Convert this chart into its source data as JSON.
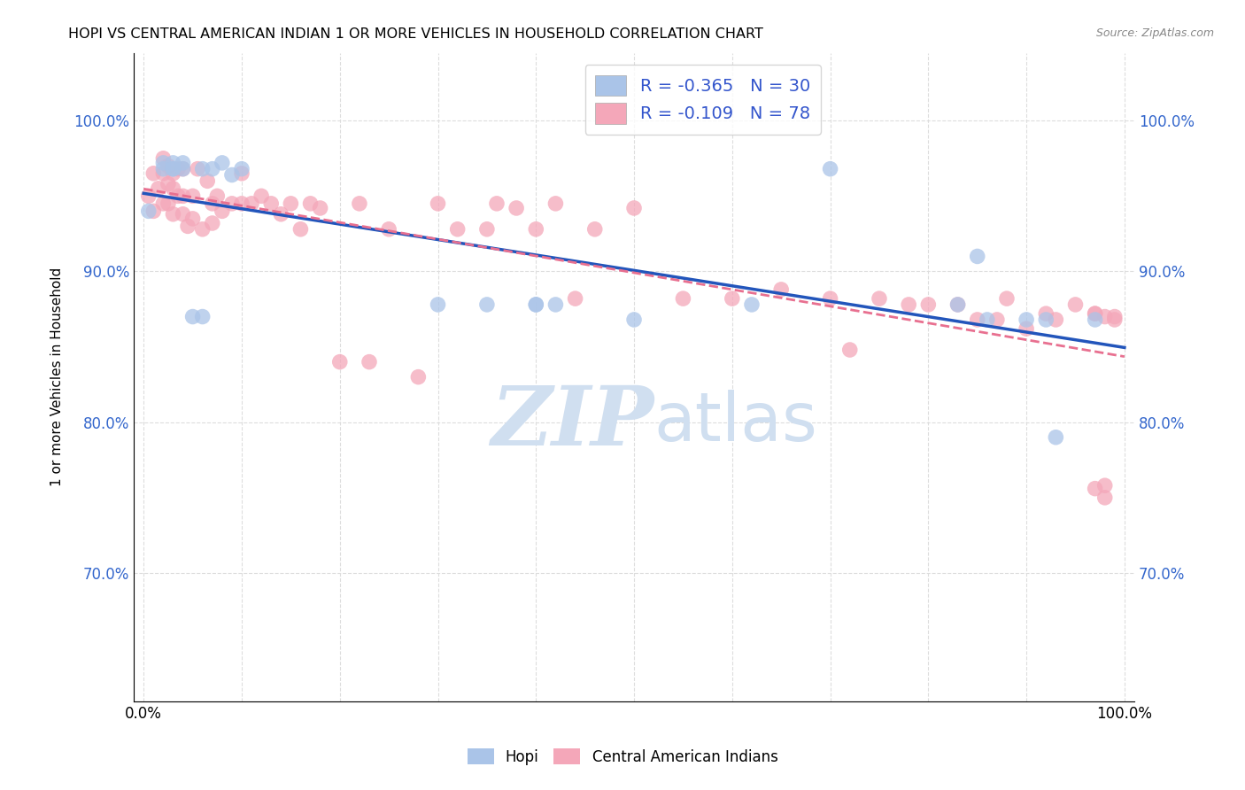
{
  "title": "HOPI VS CENTRAL AMERICAN INDIAN 1 OR MORE VEHICLES IN HOUSEHOLD CORRELATION CHART",
  "source": "Source: ZipAtlas.com",
  "ylabel": "1 or more Vehicles in Household",
  "xlabel": "",
  "xlim": [
    -0.01,
    1.01
  ],
  "ylim": [
    0.615,
    1.045
  ],
  "yticks": [
    0.7,
    0.8,
    0.9,
    1.0
  ],
  "ytick_labels": [
    "70.0%",
    "80.0%",
    "90.0%",
    "100.0%"
  ],
  "xticks": [
    0.0,
    0.1,
    0.2,
    0.3,
    0.4,
    0.5,
    0.6,
    0.7,
    0.8,
    0.9,
    1.0
  ],
  "hopi_color": "#aac4e8",
  "central_color": "#f4a7b9",
  "hopi_line_color": "#2255bb",
  "central_line_color": "#e87090",
  "hopi_R": -0.365,
  "hopi_N": 30,
  "central_R": -0.109,
  "central_N": 78,
  "watermark_zip": "ZIP",
  "watermark_atlas": "atlas",
  "watermark_color": "#d0dff0",
  "hopi_x": [
    0.005,
    0.02,
    0.02,
    0.03,
    0.03,
    0.03,
    0.04,
    0.04,
    0.05,
    0.06,
    0.06,
    0.07,
    0.08,
    0.09,
    0.1,
    0.3,
    0.35,
    0.4,
    0.4,
    0.42,
    0.5,
    0.62,
    0.7,
    0.83,
    0.85,
    0.86,
    0.9,
    0.92,
    0.93,
    0.97
  ],
  "hopi_y": [
    0.94,
    0.968,
    0.972,
    0.968,
    0.972,
    0.968,
    0.968,
    0.972,
    0.87,
    0.87,
    0.968,
    0.968,
    0.972,
    0.964,
    0.968,
    0.878,
    0.878,
    0.878,
    0.878,
    0.878,
    0.868,
    0.878,
    0.968,
    0.878,
    0.91,
    0.868,
    0.868,
    0.868,
    0.79,
    0.868
  ],
  "central_x": [
    0.005,
    0.01,
    0.01,
    0.015,
    0.02,
    0.02,
    0.02,
    0.025,
    0.025,
    0.025,
    0.03,
    0.03,
    0.03,
    0.035,
    0.035,
    0.04,
    0.04,
    0.04,
    0.045,
    0.05,
    0.05,
    0.055,
    0.06,
    0.065,
    0.07,
    0.07,
    0.075,
    0.08,
    0.09,
    0.1,
    0.1,
    0.11,
    0.12,
    0.13,
    0.14,
    0.15,
    0.16,
    0.17,
    0.18,
    0.2,
    0.22,
    0.23,
    0.25,
    0.28,
    0.3,
    0.32,
    0.35,
    0.36,
    0.38,
    0.4,
    0.42,
    0.44,
    0.46,
    0.5,
    0.55,
    0.6,
    0.65,
    0.7,
    0.72,
    0.75,
    0.78,
    0.8,
    0.83,
    0.85,
    0.87,
    0.88,
    0.9,
    0.92,
    0.93,
    0.95,
    0.97,
    0.97,
    0.97,
    0.98,
    0.98,
    0.98,
    0.99,
    0.99
  ],
  "central_y": [
    0.95,
    0.94,
    0.965,
    0.955,
    0.945,
    0.965,
    0.975,
    0.945,
    0.958,
    0.97,
    0.938,
    0.955,
    0.965,
    0.95,
    0.968,
    0.938,
    0.95,
    0.968,
    0.93,
    0.935,
    0.95,
    0.968,
    0.928,
    0.96,
    0.932,
    0.945,
    0.95,
    0.94,
    0.945,
    0.945,
    0.965,
    0.945,
    0.95,
    0.945,
    0.938,
    0.945,
    0.928,
    0.945,
    0.942,
    0.84,
    0.945,
    0.84,
    0.928,
    0.83,
    0.945,
    0.928,
    0.928,
    0.945,
    0.942,
    0.928,
    0.945,
    0.882,
    0.928,
    0.942,
    0.882,
    0.882,
    0.888,
    0.882,
    0.848,
    0.882,
    0.878,
    0.878,
    0.878,
    0.868,
    0.868,
    0.882,
    0.862,
    0.872,
    0.868,
    0.878,
    0.872,
    0.872,
    0.756,
    0.75,
    0.758,
    0.87,
    0.868,
    0.87
  ]
}
